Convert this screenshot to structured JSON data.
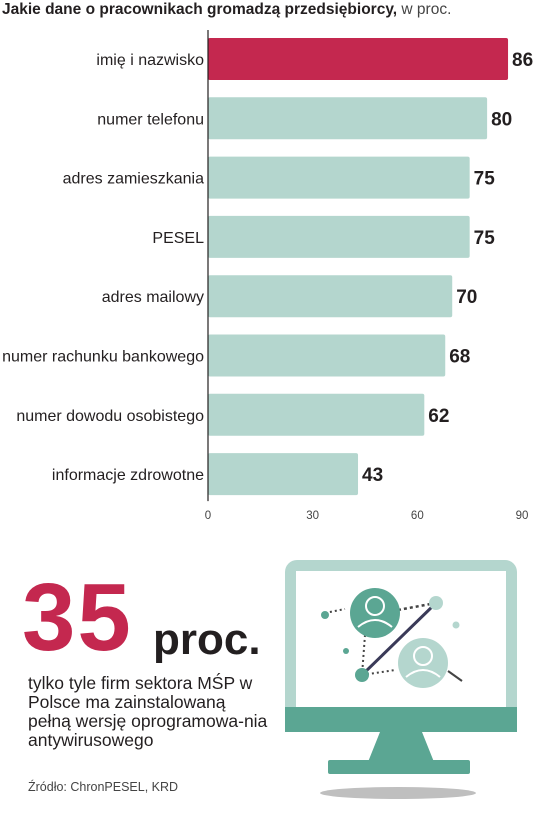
{
  "title": {
    "bold": "Jakie dane o pracownikach gromadzą przedsiębiorcy,",
    "unit": "w proc."
  },
  "colors": {
    "highlight": "#c4284f",
    "bar": "#b4d6ce",
    "axis": "#231f20",
    "monitor": "#5ba693",
    "monitor_light": "#b4d6ce"
  },
  "chart_data": {
    "type": "bar",
    "orientation": "horizontal",
    "categories": [
      "imię i nazwisko",
      "numer telefonu",
      "adres zamieszkania",
      "PESEL",
      "adres mailowy",
      "numer rachunku bankowego",
      "numer dowodu osobistego",
      "informacje zdrowotne"
    ],
    "values": [
      86,
      80,
      75,
      75,
      70,
      68,
      62,
      43
    ],
    "highlight_index": 0,
    "xlim": [
      0,
      90
    ],
    "xticks": [
      0,
      30,
      60,
      90
    ],
    "xlabel": "",
    "ylabel": "",
    "grid": false,
    "legend": "none"
  },
  "stat": {
    "number": "35",
    "unit": "proc.",
    "text": "tylko tyle firm sektora MŚP w Polsce ma zainstalowaną pełną wersję oprogramowa-nia antywirusowego"
  },
  "source": "Źródło: ChronPESEL, KRD",
  "illustration": {
    "icon": "computer-network-users-icon"
  }
}
